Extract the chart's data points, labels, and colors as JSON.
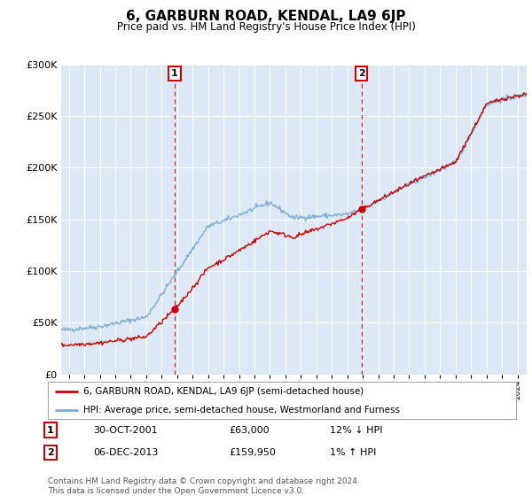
{
  "title": "6, GARBURN ROAD, KENDAL, LA9 6JP",
  "subtitle": "Price paid vs. HM Land Registry's House Price Index (HPI)",
  "sale1_date": "30-OCT-2001",
  "sale1_price": 63000,
  "sale1_hpi_diff": "12% ↓ HPI",
  "sale2_date": "06-DEC-2013",
  "sale2_price": 159950,
  "sale2_hpi_diff": "1% ↑ HPI",
  "legend_line1": "6, GARBURN ROAD, KENDAL, LA9 6JP (semi-detached house)",
  "legend_line2": "HPI: Average price, semi-detached house, Westmorland and Furness",
  "footer": "Contains HM Land Registry data © Crown copyright and database right 2024.\nThis data is licensed under the Open Government Licence v3.0.",
  "line_color_red": "#cc0000",
  "line_color_blue": "#7bafd4",
  "background_color": "#ffffff",
  "plot_bg_color": "#dce8f5",
  "dashed_line_color": "#cc0000",
  "sale1_year": 2001.83,
  "sale2_year": 2013.92,
  "ylim": [
    0,
    300000
  ],
  "xlim_start": 1994.5,
  "xlim_end": 2024.6
}
